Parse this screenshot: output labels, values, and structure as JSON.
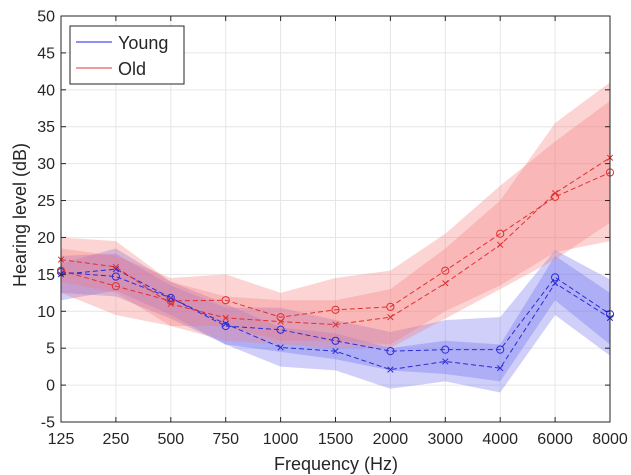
{
  "chart_data": {
    "type": "line",
    "title": "",
    "xlabel": "Frequency (Hz)",
    "ylabel": "Hearing level (dB)",
    "categories": [
      "125",
      "250",
      "500",
      "750",
      "1000",
      "1500",
      "2000",
      "3000",
      "4000",
      "6000",
      "8000"
    ],
    "ylim": [
      -5,
      50
    ],
    "yticks": [
      -5,
      0,
      5,
      10,
      15,
      20,
      25,
      30,
      35,
      40,
      45,
      50
    ],
    "grid": true,
    "legend_position": "top-left",
    "legend": [
      {
        "name": "Young",
        "color": "#8f8ff5"
      },
      {
        "name": "Old",
        "color": "#f59a9a"
      }
    ],
    "series": [
      {
        "name": "Young",
        "color": "#2b2bd6",
        "band_color": "#6b6bf0",
        "measures": [
          {
            "marker": "o",
            "values": [
              15.3,
              14.7,
              11.8,
              8.0,
              7.5,
              6.0,
              4.6,
              4.8,
              4.8,
              14.6,
              9.6
            ],
            "upper": [
              17.5,
              17.8,
              13.5,
              10.5,
              10.5,
              8.8,
              7.2,
              8.8,
              9.2,
              18.3,
              14.3
            ],
            "lower": [
              12.5,
              12.0,
              9.0,
              5.5,
              4.5,
              3.5,
              2.0,
              1.5,
              0.5,
              11.5,
              5.5
            ]
          },
          {
            "marker": "x",
            "values": [
              15.0,
              15.7,
              11.8,
              8.3,
              5.1,
              4.6,
              2.1,
              3.2,
              2.3,
              13.8,
              9.1
            ],
            "upper": [
              16.5,
              18.5,
              14.0,
              11.0,
              7.8,
              7.0,
              5.0,
              6.0,
              5.5,
              17.5,
              12.5
            ],
            "lower": [
              11.5,
              12.8,
              9.5,
              5.5,
              2.5,
              2.0,
              -0.5,
              0.5,
              -1.0,
              9.5,
              4.0
            ]
          }
        ]
      },
      {
        "name": "Old",
        "color": "#e03030",
        "band_color": "#f57878",
        "measures": [
          {
            "marker": "o",
            "values": [
              15.5,
              13.4,
              11.4,
              11.5,
              9.2,
              10.2,
              10.6,
              15.5,
              20.5,
              25.5,
              28.8
            ],
            "upper": [
              18.5,
              17.5,
              14.5,
              15.0,
              12.5,
              14.5,
              15.5,
              20.5,
              27.0,
              33.0,
              38.5
            ],
            "lower": [
              12.5,
              9.5,
              8.0,
              8.0,
              6.0,
              6.0,
              5.5,
              10.0,
              13.5,
              18.0,
              19.5
            ]
          },
          {
            "marker": "x",
            "values": [
              17.0,
              16.0,
              11.0,
              9.1,
              8.6,
              8.2,
              9.2,
              13.8,
              19.0,
              26.0,
              30.8
            ],
            "upper": [
              20.0,
              19.5,
              14.0,
              12.0,
              11.5,
              11.5,
              13.0,
              18.5,
              25.0,
              35.5,
              41.0
            ],
            "lower": [
              14.0,
              12.5,
              8.0,
              6.0,
              5.5,
              5.0,
              5.0,
              9.0,
              13.0,
              17.0,
              22.0
            ]
          }
        ]
      }
    ]
  }
}
